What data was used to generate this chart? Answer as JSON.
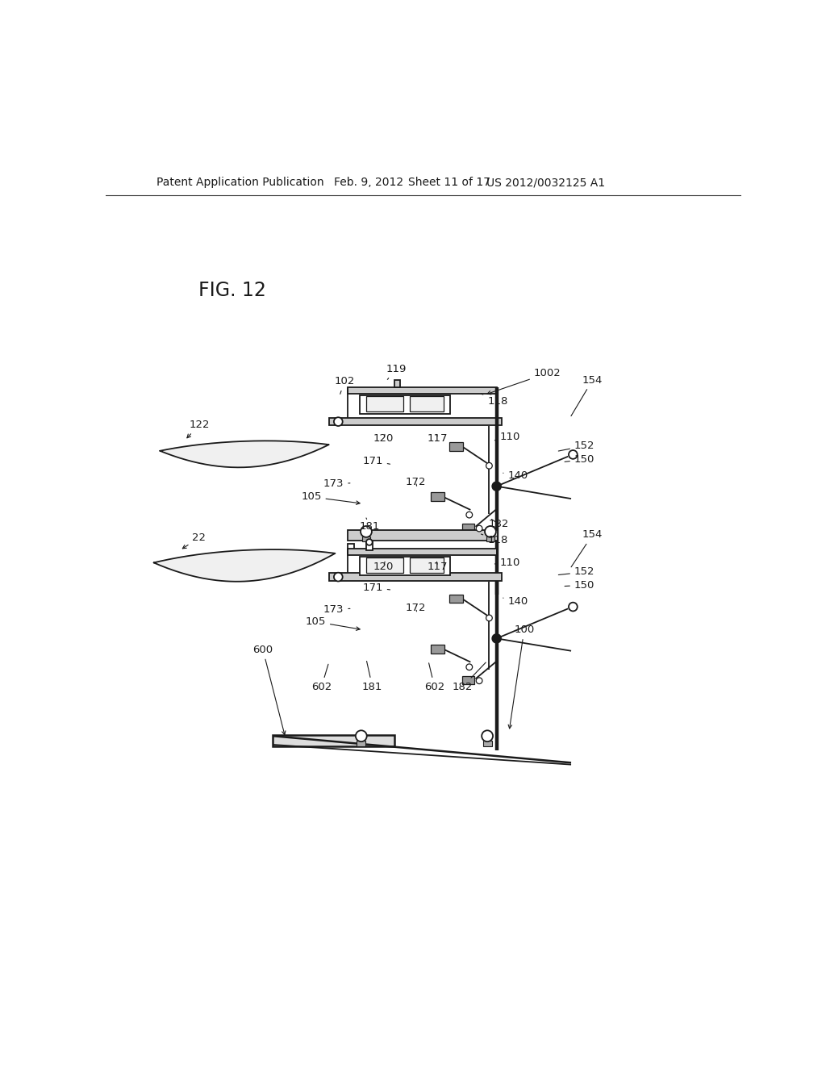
{
  "bg_color": "#ffffff",
  "header_text": "Patent Application Publication",
  "header_date": "Feb. 9, 2012",
  "header_sheet": "Sheet 11 of 17",
  "header_patent": "US 2012/0032125 A1",
  "fig_label": "FIG. 12",
  "figsize": [
    10.24,
    13.2
  ],
  "dpi": 100
}
